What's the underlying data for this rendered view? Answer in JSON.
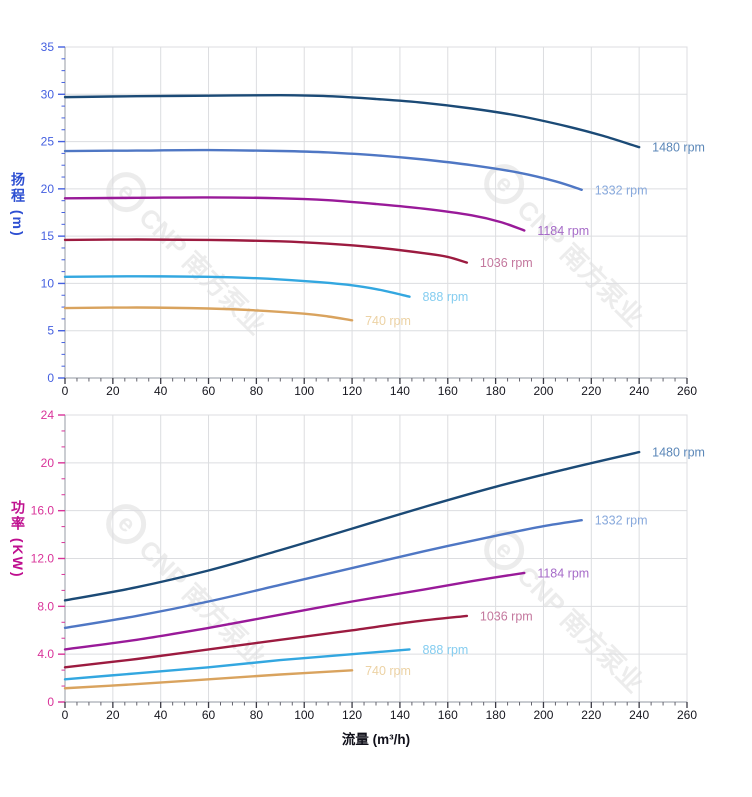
{
  "watermark": {
    "logo_glyph": "e",
    "text": "CNP 南方泵业",
    "color": "#ececec"
  },
  "x_axis": {
    "label": "流量 (m³/h)",
    "min": 0,
    "max": 260,
    "major_step": 20,
    "minor_step": 5,
    "tick_labels": [
      "0",
      "20",
      "40",
      "60",
      "80",
      "100",
      "120",
      "140",
      "160",
      "180",
      "200",
      "220",
      "240",
      "260"
    ],
    "tick_label_color": "#16161e",
    "major_tick_color": "#3a3a44",
    "minor_tick_color": "#63636d"
  },
  "chart_data": [
    {
      "type": "line",
      "title": "",
      "xlabel": "流量 (m³/h)",
      "ylabel": "扬程 (m)",
      "xlim": [
        0,
        260
      ],
      "ylim": [
        0,
        35
      ],
      "grid": true,
      "legend_position": "curve-end-labels",
      "y_major_step": 5,
      "y_minor_divisions": 4,
      "y_tick_labels": [
        "0",
        "5",
        "10",
        "15",
        "20",
        "25",
        "30",
        "35"
      ],
      "axis_color": "#4560e0",
      "title_color": "#2d4fd2",
      "series": [
        {
          "name": "1480 rpm",
          "color": "#1b4a76",
          "label_color": "#5b87b8",
          "points": [
            [
              0,
              29.7
            ],
            [
              30,
              29.8
            ],
            [
              60,
              29.85
            ],
            [
              90,
              29.9
            ],
            [
              110,
              29.8
            ],
            [
              130,
              29.5
            ],
            [
              150,
              29.1
            ],
            [
              170,
              28.5
            ],
            [
              190,
              27.7
            ],
            [
              210,
              26.6
            ],
            [
              225,
              25.6
            ],
            [
              240,
              24.4
            ]
          ]
        },
        {
          "name": "1332 rpm",
          "color": "#4f77c4",
          "label_color": "#88a9dc",
          "points": [
            [
              0,
              24.0
            ],
            [
              30,
              24.05
            ],
            [
              60,
              24.1
            ],
            [
              90,
              24.0
            ],
            [
              110,
              23.85
            ],
            [
              130,
              23.55
            ],
            [
              150,
              23.1
            ],
            [
              170,
              22.5
            ],
            [
              190,
              21.7
            ],
            [
              205,
              20.8
            ],
            [
              216,
              19.9
            ]
          ]
        },
        {
          "name": "1184 rpm",
          "color": "#991a99",
          "label_color": "#a66bc8",
          "points": [
            [
              0,
              19.0
            ],
            [
              30,
              19.05
            ],
            [
              60,
              19.1
            ],
            [
              90,
              19.0
            ],
            [
              110,
              18.8
            ],
            [
              130,
              18.4
            ],
            [
              150,
              17.9
            ],
            [
              170,
              17.2
            ],
            [
              182,
              16.5
            ],
            [
              192,
              15.6
            ]
          ]
        },
        {
          "name": "1036 rpm",
          "color": "#9c1b40",
          "label_color": "#c4789e",
          "points": [
            [
              0,
              14.6
            ],
            [
              30,
              14.65
            ],
            [
              60,
              14.6
            ],
            [
              90,
              14.45
            ],
            [
              110,
              14.2
            ],
            [
              130,
              13.8
            ],
            [
              150,
              13.2
            ],
            [
              160,
              12.8
            ],
            [
              168,
              12.2
            ]
          ]
        },
        {
          "name": "888 rpm",
          "color": "#33a7e0",
          "label_color": "#85cdf0",
          "points": [
            [
              0,
              10.7
            ],
            [
              30,
              10.75
            ],
            [
              60,
              10.7
            ],
            [
              80,
              10.55
            ],
            [
              100,
              10.25
            ],
            [
              120,
              9.8
            ],
            [
              132,
              9.3
            ],
            [
              144,
              8.6
            ]
          ]
        },
        {
          "name": "740 rpm",
          "color": "#d9a35e",
          "label_color": "#ecd2a4",
          "points": [
            [
              0,
              7.4
            ],
            [
              30,
              7.45
            ],
            [
              60,
              7.35
            ],
            [
              80,
              7.15
            ],
            [
              100,
              6.8
            ],
            [
              110,
              6.5
            ],
            [
              120,
              6.1
            ]
          ]
        }
      ]
    },
    {
      "type": "line",
      "title": "",
      "xlabel": "流量 (m³/h)",
      "ylabel": "功率 (KW)",
      "xlim": [
        0,
        260
      ],
      "ylim": [
        0,
        24
      ],
      "grid": true,
      "legend_position": "curve-end-labels",
      "y_major_step": 4,
      "y_minor_divisions": 3,
      "y_tick_labels": [
        "0",
        "4.0",
        "8.0",
        "12.0",
        "16.0",
        "20",
        "24"
      ],
      "axis_color": "#d93399",
      "title_color": "#bf0f8f",
      "series": [
        {
          "name": "1480 rpm",
          "color": "#1b4a76",
          "label_color": "#5b87b8",
          "points": [
            [
              0,
              8.5
            ],
            [
              30,
              9.6
            ],
            [
              60,
              11.0
            ],
            [
              90,
              12.7
            ],
            [
              120,
              14.5
            ],
            [
              150,
              16.3
            ],
            [
              180,
              18.0
            ],
            [
              210,
              19.5
            ],
            [
              240,
              20.9
            ]
          ]
        },
        {
          "name": "1332 rpm",
          "color": "#4f77c4",
          "label_color": "#88a9dc",
          "points": [
            [
              0,
              6.2
            ],
            [
              30,
              7.2
            ],
            [
              60,
              8.4
            ],
            [
              90,
              9.8
            ],
            [
              120,
              11.2
            ],
            [
              150,
              12.6
            ],
            [
              180,
              13.9
            ],
            [
              200,
              14.7
            ],
            [
              216,
              15.2
            ]
          ]
        },
        {
          "name": "1184 rpm",
          "color": "#991a99",
          "label_color": "#a66bc8",
          "points": [
            [
              0,
              4.4
            ],
            [
              30,
              5.2
            ],
            [
              60,
              6.2
            ],
            [
              90,
              7.3
            ],
            [
              120,
              8.4
            ],
            [
              150,
              9.4
            ],
            [
              170,
              10.1
            ],
            [
              192,
              10.8
            ]
          ]
        },
        {
          "name": "1036 rpm",
          "color": "#9c1b40",
          "label_color": "#c4789e",
          "points": [
            [
              0,
              2.9
            ],
            [
              30,
              3.6
            ],
            [
              60,
              4.4
            ],
            [
              90,
              5.2
            ],
            [
              120,
              6.0
            ],
            [
              145,
              6.7
            ],
            [
              168,
              7.2
            ]
          ]
        },
        {
          "name": "888 rpm",
          "color": "#33a7e0",
          "label_color": "#85cdf0",
          "points": [
            [
              0,
              1.9
            ],
            [
              30,
              2.4
            ],
            [
              60,
              2.9
            ],
            [
              90,
              3.5
            ],
            [
              120,
              4.0
            ],
            [
              144,
              4.4
            ]
          ]
        },
        {
          "name": "740 rpm",
          "color": "#d9a35e",
          "label_color": "#ecd2a4",
          "points": [
            [
              0,
              1.15
            ],
            [
              30,
              1.5
            ],
            [
              60,
              1.9
            ],
            [
              90,
              2.3
            ],
            [
              120,
              2.65
            ]
          ]
        }
      ]
    }
  ]
}
